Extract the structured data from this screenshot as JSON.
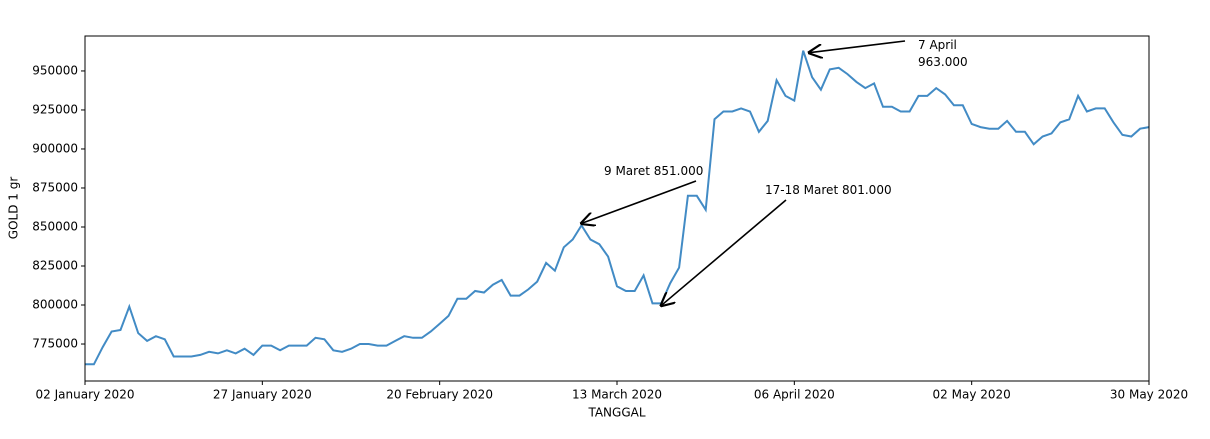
{
  "chart_data": {
    "type": "line",
    "xlabel": "TANGGAL",
    "ylabel": "GOLD 1 gr",
    "categories": [
      "02 January 2020",
      null,
      null,
      null,
      null,
      null,
      null,
      null,
      null,
      null,
      null,
      null,
      null,
      null,
      null,
      null,
      null,
      null,
      null,
      null,
      "27 January 2020",
      null,
      null,
      null,
      null,
      null,
      null,
      null,
      null,
      null,
      null,
      null,
      null,
      null,
      null,
      null,
      null,
      null,
      null,
      null,
      "20 February 2020",
      null,
      null,
      null,
      null,
      null,
      null,
      null,
      null,
      null,
      null,
      null,
      null,
      null,
      null,
      null,
      null,
      null,
      null,
      null,
      "13 March 2020",
      null,
      null,
      null,
      null,
      null,
      null,
      null,
      null,
      null,
      null,
      null,
      null,
      null,
      null,
      null,
      null,
      null,
      null,
      null,
      "06 April 2020",
      null,
      null,
      null,
      null,
      null,
      null,
      null,
      null,
      null,
      null,
      null,
      null,
      null,
      null,
      null,
      null,
      null,
      null,
      null,
      "02 May 2020",
      null,
      null,
      null,
      null,
      null,
      null,
      null,
      null,
      null,
      null,
      null,
      null,
      null,
      null,
      null,
      null,
      null,
      null,
      null,
      "30 May 2020"
    ],
    "series": [
      {
        "name": "GOLD 1 gr",
        "color": "#428bc5",
        "values": [
          762000,
          762000,
          773000,
          783000,
          784000,
          799000,
          782000,
          777000,
          780000,
          778000,
          767000,
          767000,
          767000,
          768000,
          770000,
          769000,
          771000,
          769000,
          772000,
          768000,
          774000,
          774000,
          771000,
          774000,
          774000,
          774000,
          779000,
          778000,
          771000,
          770000,
          772000,
          775000,
          775000,
          774000,
          774000,
          777000,
          780000,
          779000,
          779000,
          783000,
          788000,
          793000,
          804000,
          804000,
          809000,
          808000,
          813000,
          816000,
          806000,
          806000,
          810000,
          815000,
          827000,
          822000,
          837000,
          842000,
          851000,
          842000,
          839000,
          831000,
          812000,
          809000,
          809000,
          819000,
          801000,
          801000,
          814000,
          824000,
          870000,
          870000,
          861000,
          919000,
          924000,
          924000,
          926000,
          924000,
          911000,
          918000,
          944000,
          934000,
          931000,
          963000,
          946000,
          938000,
          951000,
          952000,
          948000,
          943000,
          939000,
          942000,
          927000,
          927000,
          924000,
          924000,
          934000,
          934000,
          939000,
          935000,
          928000,
          928000,
          916000,
          914000,
          913000,
          913000,
          918000,
          911000,
          911000,
          903000,
          908000,
          910000,
          917000,
          919000,
          934000,
          924000,
          926000,
          926000,
          917000,
          909000,
          908000,
          913000,
          914000
        ]
      }
    ],
    "ylim": [
      751300,
      972400
    ],
    "yticks": [
      775000,
      800000,
      825000,
      850000,
      875000,
      900000,
      925000,
      950000
    ],
    "annotations": [
      {
        "lines": [
          "9 Maret 851.000"
        ]
      },
      {
        "lines": [
          "17-18 Maret 801.000"
        ]
      },
      {
        "lines": [
          "7 April",
          "963.000"
        ]
      }
    ]
  }
}
